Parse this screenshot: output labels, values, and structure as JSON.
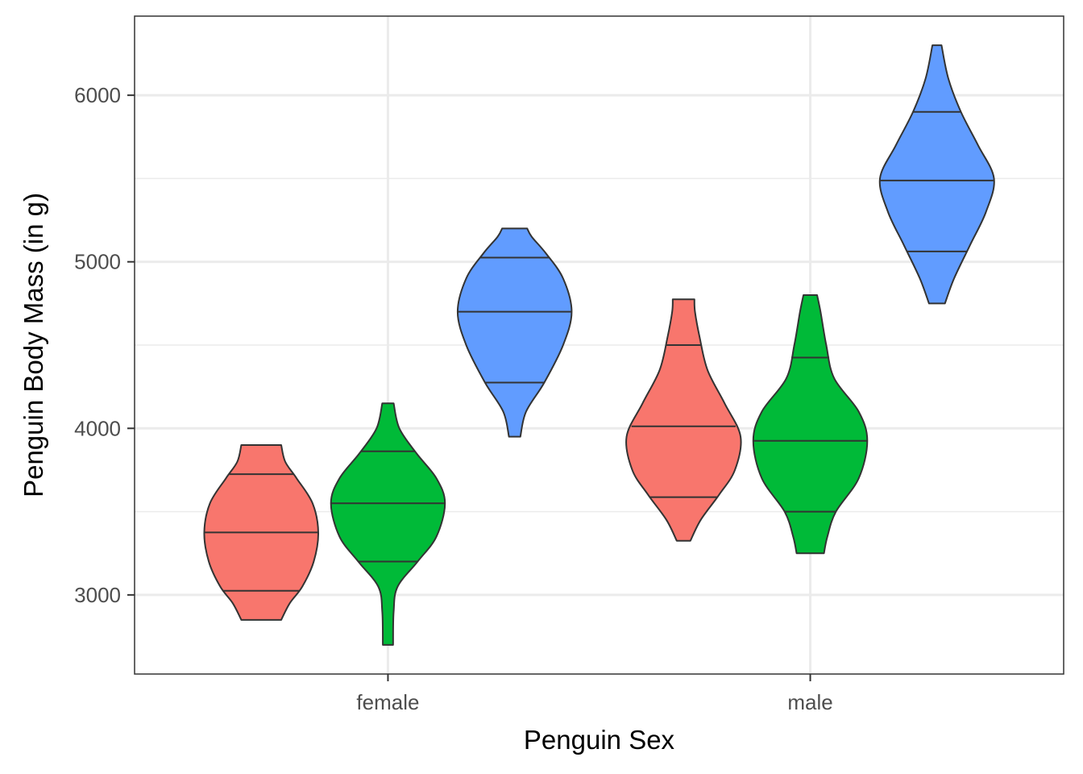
{
  "chart_data": {
    "type": "violin",
    "xlabel": "Penguin Sex",
    "ylabel": "Penguin Body Mass (in g)",
    "categories": [
      "female",
      "male"
    ],
    "yticks": [
      3000,
      4000,
      5000,
      6000
    ],
    "ylim": [
      2525,
      6475
    ],
    "grid": true,
    "legend": "none",
    "series": [
      {
        "color": "#F8766D",
        "violins": [
          {
            "category": "female",
            "min": 2850,
            "max": 3900,
            "quantiles": [
              3025,
              3375,
              3725
            ],
            "profile": [
              [
                2850,
                0.35
              ],
              [
                2950,
                0.5
              ],
              [
                3050,
                0.72
              ],
              [
                3200,
                0.92
              ],
              [
                3375,
                1.0
              ],
              [
                3550,
                0.9
              ],
              [
                3700,
                0.62
              ],
              [
                3800,
                0.42
              ],
              [
                3900,
                0.35
              ]
            ]
          },
          {
            "category": "male",
            "min": 3325,
            "max": 4775,
            "quantiles": [
              3587,
              4012,
              4500
            ],
            "profile": [
              [
                3325,
                0.12
              ],
              [
                3450,
                0.3
              ],
              [
                3600,
                0.62
              ],
              [
                3750,
                0.9
              ],
              [
                3950,
                1.0
              ],
              [
                4150,
                0.72
              ],
              [
                4350,
                0.42
              ],
              [
                4550,
                0.28
              ],
              [
                4700,
                0.2
              ],
              [
                4775,
                0.19
              ]
            ]
          }
        ]
      },
      {
        "color": "#00BA38",
        "violins": [
          {
            "category": "female",
            "min": 2700,
            "max": 4150,
            "quantiles": [
              3200,
              3550,
              3862
            ],
            "profile": [
              [
                2700,
                0.09
              ],
              [
                2900,
                0.1
              ],
              [
                3050,
                0.17
              ],
              [
                3200,
                0.52
              ],
              [
                3350,
                0.85
              ],
              [
                3550,
                1.0
              ],
              [
                3700,
                0.85
              ],
              [
                3850,
                0.5
              ],
              [
                4000,
                0.2
              ],
              [
                4150,
                0.1
              ]
            ]
          },
          {
            "category": "male",
            "min": 3250,
            "max": 4800,
            "quantiles": [
              3500,
              3925,
              4425
            ],
            "profile": [
              [
                3250,
                0.24
              ],
              [
                3350,
                0.3
              ],
              [
                3500,
                0.45
              ],
              [
                3700,
                0.85
              ],
              [
                3925,
                1.0
              ],
              [
                4100,
                0.85
              ],
              [
                4300,
                0.42
              ],
              [
                4500,
                0.28
              ],
              [
                4700,
                0.18
              ],
              [
                4800,
                0.12
              ]
            ]
          }
        ]
      },
      {
        "color": "#619CFF",
        "violins": [
          {
            "category": "female",
            "min": 3950,
            "max": 5200,
            "quantiles": [
              4275,
              4700,
              5025
            ],
            "profile": [
              [
                3950,
                0.1
              ],
              [
                4100,
                0.2
              ],
              [
                4275,
                0.52
              ],
              [
                4500,
                0.85
              ],
              [
                4700,
                1.0
              ],
              [
                4900,
                0.85
              ],
              [
                5050,
                0.55
              ],
              [
                5150,
                0.3
              ],
              [
                5200,
                0.22
              ]
            ]
          },
          {
            "category": "male",
            "min": 4750,
            "max": 6300,
            "quantiles": [
              5062,
              5488,
              5900
            ],
            "profile": [
              [
                4750,
                0.14
              ],
              [
                4900,
                0.3
              ],
              [
                5100,
                0.58
              ],
              [
                5300,
                0.86
              ],
              [
                5500,
                1.0
              ],
              [
                5700,
                0.72
              ],
              [
                5900,
                0.42
              ],
              [
                6100,
                0.2
              ],
              [
                6300,
                0.08
              ]
            ]
          }
        ]
      }
    ]
  }
}
